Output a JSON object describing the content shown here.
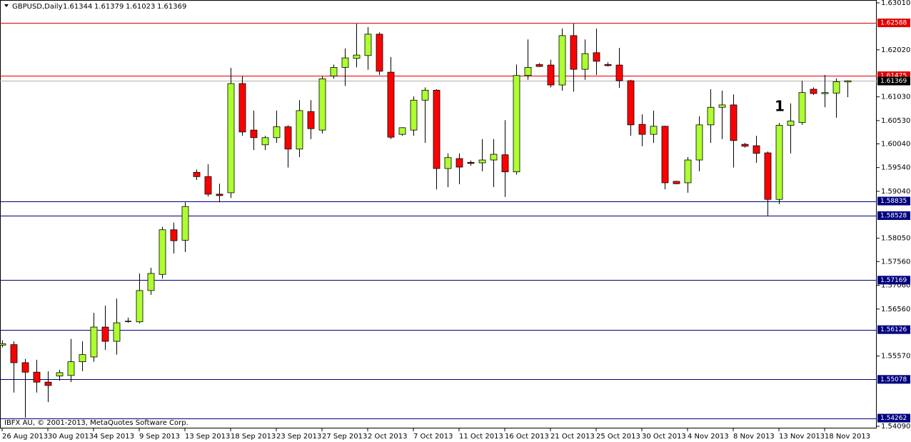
{
  "chart_data": {
    "type": "candlestick",
    "title": "GBPUSD,Daily",
    "source": "IBFX AU, © 2001-2013, MetaQuotes Software Corp.",
    "annotation": "1",
    "up_color": "#adff2f",
    "down_color": "#ff0000",
    "categories": [
      "26 Aug 2013",
      null,
      null,
      null,
      "30 Aug 2013",
      null,
      null,
      null,
      "4 Sep 2013",
      null,
      null,
      null,
      "9 Sep 2013",
      null,
      null,
      null,
      "13 Sep 2013",
      null,
      null,
      null,
      "18 Sep 2013",
      null,
      null,
      null,
      "23 Sep 2013",
      null,
      null,
      null,
      "27 Sep 2013",
      null,
      null,
      null,
      "2 Oct 2013",
      null,
      null,
      null,
      "7 Oct 2013",
      null,
      null,
      null,
      "11 Oct 2013",
      null,
      null,
      null,
      "16 Oct 2013",
      null,
      null,
      null,
      "21 Oct 2013",
      null,
      null,
      null,
      "25 Oct 2013",
      null,
      null,
      null,
      "30 Oct 2013",
      null,
      null,
      null,
      "4 Nov 2013",
      null,
      null,
      null,
      "8 Nov 2013",
      null,
      null,
      null,
      "13 Nov 2013",
      null,
      null,
      null,
      "18 Nov 2013",
      null,
      null
    ],
    "open": [
      1.558,
      1.5581,
      1.5543,
      1.5523,
      1.5502,
      1.5515,
      1.5516,
      1.5545,
      1.5555,
      1.5618,
      1.5588,
      1.563,
      1.5629,
      1.5695,
      1.5729,
      1.5823,
      1.5801,
      1.5944,
      1.5935,
      1.5898,
      1.5901,
      1.6131,
      1.6033,
      1.6002,
      1.6017,
      1.604,
      1.5993,
      1.6072,
      1.6033,
      1.6147,
      1.6165,
      1.6184,
      1.619,
      1.6235,
      1.6155,
      1.6024,
      1.6033,
      1.6096,
      1.6117,
      1.5952,
      1.5973,
      1.5965,
      1.5964,
      1.597,
      1.5981,
      1.5945,
      1.6148,
      1.6171,
      1.617,
      1.6128,
      1.6232,
      1.6161,
      1.6196,
      1.6171,
      1.617,
      1.6137,
      1.6045,
      1.6024,
      1.6041,
      1.5925,
      1.5922,
      1.597,
      1.6044,
      1.6081,
      1.6086,
      1.6003,
      1.6,
      1.5985,
      1.5887,
      1.6043,
      1.6049,
      1.6119,
      1.6111,
      1.6111,
      1.61344
    ],
    "high": [
      1.559,
      1.5588,
      1.5551,
      1.5549,
      1.5525,
      1.5528,
      1.5593,
      1.5588,
      1.5648,
      1.5663,
      1.5678,
      1.5638,
      1.5731,
      1.5743,
      1.5829,
      1.5838,
      1.5881,
      1.595,
      1.5961,
      1.592,
      1.6164,
      1.6146,
      1.6074,
      1.6021,
      1.6074,
      1.6043,
      1.6096,
      1.6096,
      1.6146,
      1.6171,
      1.6205,
      1.6257,
      1.625,
      1.6239,
      1.6187,
      1.6039,
      1.6104,
      1.6123,
      1.6119,
      1.5984,
      1.5984,
      1.5969,
      1.6014,
      1.6014,
      1.6054,
      1.6171,
      1.6224,
      1.6174,
      1.6181,
      1.6247,
      1.6257,
      1.6224,
      1.6247,
      1.6176,
      1.6206,
      1.6139,
      1.6066,
      1.6074,
      1.6042,
      1.5926,
      1.5976,
      1.6062,
      1.6119,
      1.6116,
      1.6108,
      1.6006,
      1.6021,
      1.5988,
      1.6048,
      1.6089,
      1.6137,
      1.6123,
      1.6149,
      1.6142,
      1.61379
    ],
    "low": [
      1.5575,
      1.548,
      1.5427,
      1.548,
      1.546,
      1.5505,
      1.5502,
      1.5525,
      1.5545,
      1.557,
      1.556,
      1.5627,
      1.5626,
      1.5686,
      1.572,
      1.5773,
      1.5776,
      1.5928,
      1.5893,
      1.5881,
      1.589,
      1.6021,
      1.5991,
      1.5991,
      1.6006,
      1.5954,
      1.5976,
      1.6014,
      1.6026,
      1.6141,
      1.6126,
      1.6165,
      1.616,
      1.6149,
      1.6014,
      1.6021,
      1.6021,
      1.6006,
      1.5908,
      1.5913,
      1.5919,
      1.5958,
      1.5946,
      1.5913,
      1.5892,
      1.5939,
      1.6139,
      1.6166,
      1.6123,
      1.6116,
      1.6114,
      1.6139,
      1.6149,
      1.6167,
      1.6122,
      1.6021,
      1.5999,
      1.6006,
      1.5908,
      1.5919,
      1.5901,
      1.5946,
      1.6006,
      1.6014,
      1.5954,
      1.5996,
      1.5964,
      1.5853,
      1.5877,
      1.5984,
      1.6044,
      1.6107,
      1.6081,
      1.6059,
      1.61023
    ],
    "close": [
      1.5583,
      1.5543,
      1.5523,
      1.5502,
      1.5495,
      1.5522,
      1.5545,
      1.556,
      1.5618,
      1.5588,
      1.5627,
      1.563,
      1.5695,
      1.5731,
      1.5823,
      1.58,
      1.5872,
      1.5935,
      1.5898,
      1.5895,
      1.6131,
      1.6029,
      1.6017,
      1.6017,
      1.604,
      1.5993,
      1.6074,
      1.6036,
      1.6141,
      1.6165,
      1.6185,
      1.6191,
      1.6235,
      1.6157,
      1.6018,
      1.6038,
      1.6096,
      1.6117,
      1.5952,
      1.5975,
      1.5955,
      1.5964,
      1.597,
      1.5982,
      1.5945,
      1.6148,
      1.6165,
      1.6167,
      1.6128,
      1.6232,
      1.6161,
      1.6194,
      1.6178,
      1.6169,
      1.6137,
      1.6044,
      1.6024,
      1.6041,
      1.5922,
      1.592,
      1.597,
      1.6044,
      1.6081,
      1.6086,
      1.6011,
      1.5999,
      1.5984,
      1.5887,
      1.6043,
      1.6052,
      1.6112,
      1.611,
      1.6112,
      1.6135,
      1.61369
    ],
    "ylim": [
      1.5409,
      1.6301
    ],
    "yticks": [
      {
        "value": 1.6301,
        "label": "1.63010"
      },
      {
        "value": 1.6202,
        "label": "1.62020"
      },
      {
        "value": 1.6103,
        "label": "1.61030"
      },
      {
        "value": 1.6053,
        "label": "1.60530"
      },
      {
        "value": 1.6004,
        "label": "1.60040"
      },
      {
        "value": 1.5954,
        "label": "1.59540"
      },
      {
        "value": 1.5904,
        "label": "1.59040"
      },
      {
        "value": 1.5805,
        "label": "1.58050"
      },
      {
        "value": 1.5756,
        "label": "1.57560"
      },
      {
        "value": 1.5706,
        "label": "1.57060"
      },
      {
        "value": 1.5656,
        "label": "1.56560"
      },
      {
        "value": 1.5557,
        "label": "1.55570"
      },
      {
        "value": 1.5409,
        "label": "1.54090"
      }
    ],
    "levels": [
      {
        "value": 1.62588,
        "color": "#e00000"
      },
      {
        "value": 1.61475,
        "color": "#e00000"
      },
      {
        "value": 1.58835,
        "color": "#000080"
      },
      {
        "value": 1.58528,
        "color": "#000080"
      },
      {
        "value": 1.57169,
        "color": "#000080"
      },
      {
        "value": 1.56126,
        "color": "#000080"
      },
      {
        "value": 1.55078,
        "color": "#000080"
      },
      {
        "value": 1.54262,
        "color": "#000080"
      }
    ]
  }
}
